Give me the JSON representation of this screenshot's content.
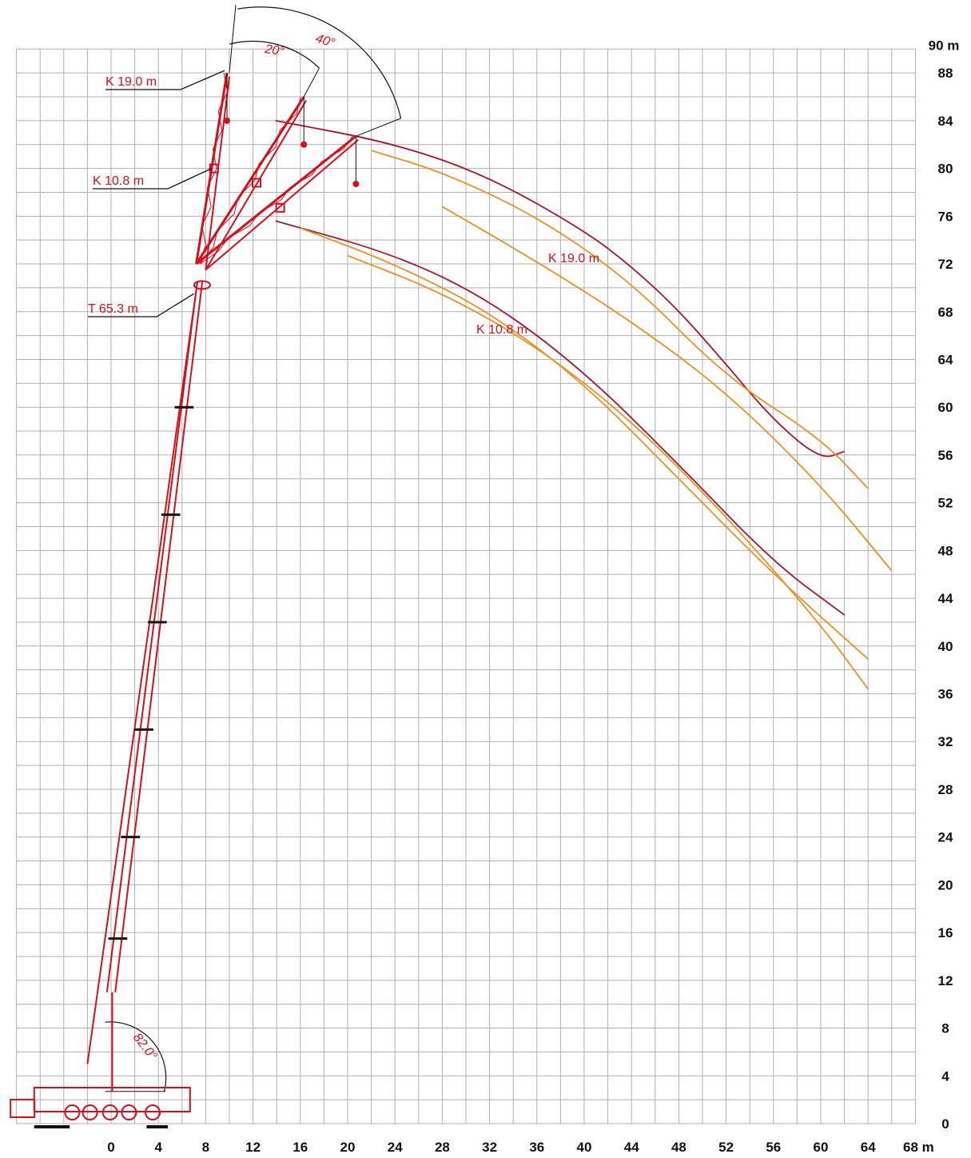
{
  "colors": {
    "grid": "#b0b0b0",
    "boom": "#d4101c",
    "curve_main": "#a01830",
    "curve_alt": "#e8922a",
    "text_dark": "#111111",
    "annotation": "#d4101c"
  },
  "axes": {
    "x_ticks": [
      "0",
      "4",
      "8",
      "12",
      "16",
      "20",
      "24",
      "28",
      "32",
      "36",
      "40",
      "44",
      "48",
      "52",
      "56",
      "60",
      "64",
      "68 m"
    ],
    "y_ticks": [
      "0",
      "4",
      "8",
      "12",
      "16",
      "20",
      "24",
      "28",
      "32",
      "36",
      "40",
      "44",
      "48",
      "52",
      "56",
      "60",
      "64",
      "68",
      "72",
      "76",
      "80",
      "84",
      "88",
      "90 m"
    ]
  },
  "labels": {
    "k19_top": "K 19.0 m",
    "k108_top": "K 10.8 m",
    "telescope": "T 65.3 m",
    "angle_40": "40°",
    "angle_20": "20°",
    "angle_82": "82.0°",
    "curve_k19": "K 19.0 m",
    "curve_k108": "K 10.8 m"
  },
  "chart_data": {
    "type": "line",
    "xlabel": "m",
    "ylabel": "m",
    "xlim": [
      -9,
      68
    ],
    "ylim": [
      0,
      90
    ],
    "grid": true,
    "boom": {
      "telescope_length_m": 65.3,
      "boom_angle_deg": 82.0,
      "pivot": [
        0,
        11
      ],
      "head": [
        7.5,
        70.5
      ],
      "jibs": [
        {
          "name": "K 19.0 m",
          "offset_deg": 0,
          "tip": [
            9.8,
            88
          ]
        },
        {
          "name": "K 19.0 m",
          "offset_deg": 20,
          "tip": [
            16.3,
            86
          ]
        },
        {
          "name": "K 19.0 m",
          "offset_deg": 40,
          "tip": [
            20.7,
            82.7
          ]
        }
      ],
      "knuckle_k108": [
        8.7,
        80
      ],
      "knuckle_k108_20": [
        12.3,
        78.8
      ],
      "knuckle_k108_40": [
        14.3,
        76.7
      ]
    },
    "series": [
      {
        "name": "K 19.0 m",
        "color": "curve_main",
        "x": [
          13.9,
          24,
          32,
          40,
          44,
          48,
          52,
          56,
          60,
          62
        ],
        "y": [
          84,
          82.1,
          79.3,
          74.8,
          71.8,
          68.1,
          63.6,
          58.9,
          55.6,
          56.3
        ]
      },
      {
        "name": "",
        "color": "curve_alt",
        "x": [
          22,
          28,
          36,
          44,
          52,
          60,
          64
        ],
        "y": [
          81.5,
          79.7,
          76,
          70.5,
          62.5,
          57.4,
          53.2
        ]
      },
      {
        "name": "",
        "color": "curve_alt",
        "x": [
          28,
          36,
          44,
          52,
          60,
          66
        ],
        "y": [
          76.8,
          72.2,
          67.2,
          61.3,
          53.5,
          46.3
        ]
      },
      {
        "name": "K 10.8 m",
        "color": "curve_main",
        "x": [
          13.9,
          24,
          32,
          40,
          48,
          56,
          62
        ],
        "y": [
          75.6,
          72.8,
          69,
          63,
          55.2,
          47,
          42.6
        ]
      },
      {
        "name": "",
        "color": "curve_alt",
        "x": [
          16,
          24,
          32,
          40,
          48,
          56,
          64
        ],
        "y": [
          75,
          72,
          68,
          62,
          54,
          46,
          38.9
        ]
      },
      {
        "name": "",
        "color": "curve_alt",
        "x": [
          20,
          28,
          36,
          44,
          52,
          60,
          64
        ],
        "y": [
          72.7,
          69.6,
          65.1,
          58.9,
          50.9,
          41.8,
          36.4
        ]
      }
    ]
  }
}
